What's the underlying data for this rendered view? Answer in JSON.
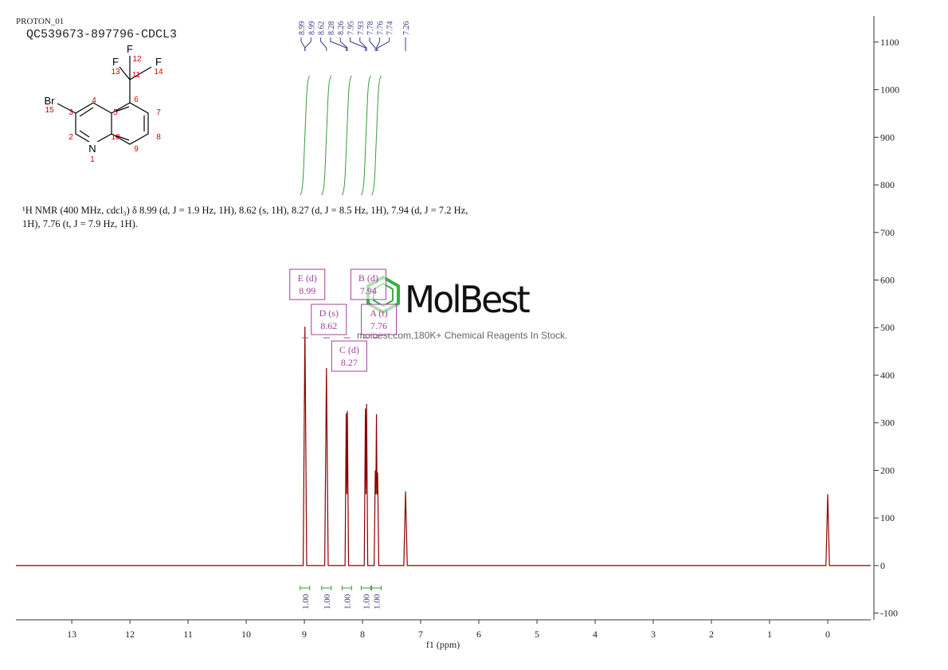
{
  "chart_data": {
    "type": "line",
    "title": "PROTON_01",
    "subtitle": "QC539673-897796-CDCL3",
    "xlabel": "f1 (ppm)",
    "description": "¹H NMR (400 MHz, cdcl₃) δ 8.99 (d, J = 1.9 Hz, 1H), 8.62 (s, 1H), 8.27 (d, J = 8.5 Hz, 1H), 7.94 (d, J = 7.2 Hz, 1H), 7.76 (t, J = 7.9 Hz, 1H).",
    "xlim": [
      13.96,
      -0.74
    ],
    "xticks": [
      13,
      12,
      11,
      10,
      9,
      8,
      7,
      6,
      5,
      4,
      3,
      2,
      1,
      0
    ],
    "ylim": [
      -114,
      1155
    ],
    "yticks": [
      -100,
      0,
      100,
      200,
      300,
      400,
      500,
      600,
      700,
      800,
      900,
      1000,
      1100
    ],
    "series": [
      {
        "name": "spectrum",
        "color": "#8b0000",
        "x": [
          13.96,
          9.02,
          8.99,
          8.96,
          8.65,
          8.62,
          8.59,
          8.3,
          8.28,
          8.27,
          8.26,
          8.24,
          7.97,
          7.95,
          7.94,
          7.93,
          7.91,
          7.8,
          7.78,
          7.77,
          7.76,
          7.75,
          7.74,
          7.72,
          7.29,
          7.26,
          7.23,
          0.03,
          0,
          -0.03,
          -0.74
        ],
        "values": [
          0,
          0,
          502,
          0,
          0,
          415,
          0,
          0,
          320,
          150,
          325,
          0,
          0,
          330,
          150,
          340,
          0,
          0,
          200,
          150,
          318,
          150,
          195,
          0,
          0,
          156,
          0,
          0,
          150,
          0,
          0
        ]
      }
    ],
    "peak_labels": [
      8.99,
      8.99,
      8.62,
      8.28,
      8.26,
      7.95,
      7.93,
      7.78,
      7.76,
      7.74,
      7.26
    ],
    "multiplets": [
      {
        "label": "E (d)",
        "shift": 8.99
      },
      {
        "label": "D (s)",
        "shift": 8.62
      },
      {
        "label": "C (d)",
        "shift": 8.27
      },
      {
        "label": "B (d)",
        "shift": 7.94
      },
      {
        "label": "A (t)",
        "shift": 7.76
      }
    ],
    "integrals": {
      "positions": [
        8.99,
        8.62,
        8.27,
        7.94,
        7.76
      ],
      "values": [
        1,
        1,
        1,
        1,
        1
      ],
      "value_labels": [
        "1.00",
        "1.00",
        "1.00",
        "1.00",
        "1.00"
      ]
    },
    "structure": {
      "atoms": [
        "F",
        "12",
        "F",
        "13",
        "11",
        "F",
        "14",
        "6",
        "Br",
        "15",
        "3",
        "4",
        "5",
        "7",
        "2",
        "10",
        "8",
        "N",
        "1",
        "9"
      ]
    },
    "watermark": {
      "brand": "MolBest",
      "tagline": "molbest.com,180K+ Chemical Reagents In Stock."
    }
  }
}
